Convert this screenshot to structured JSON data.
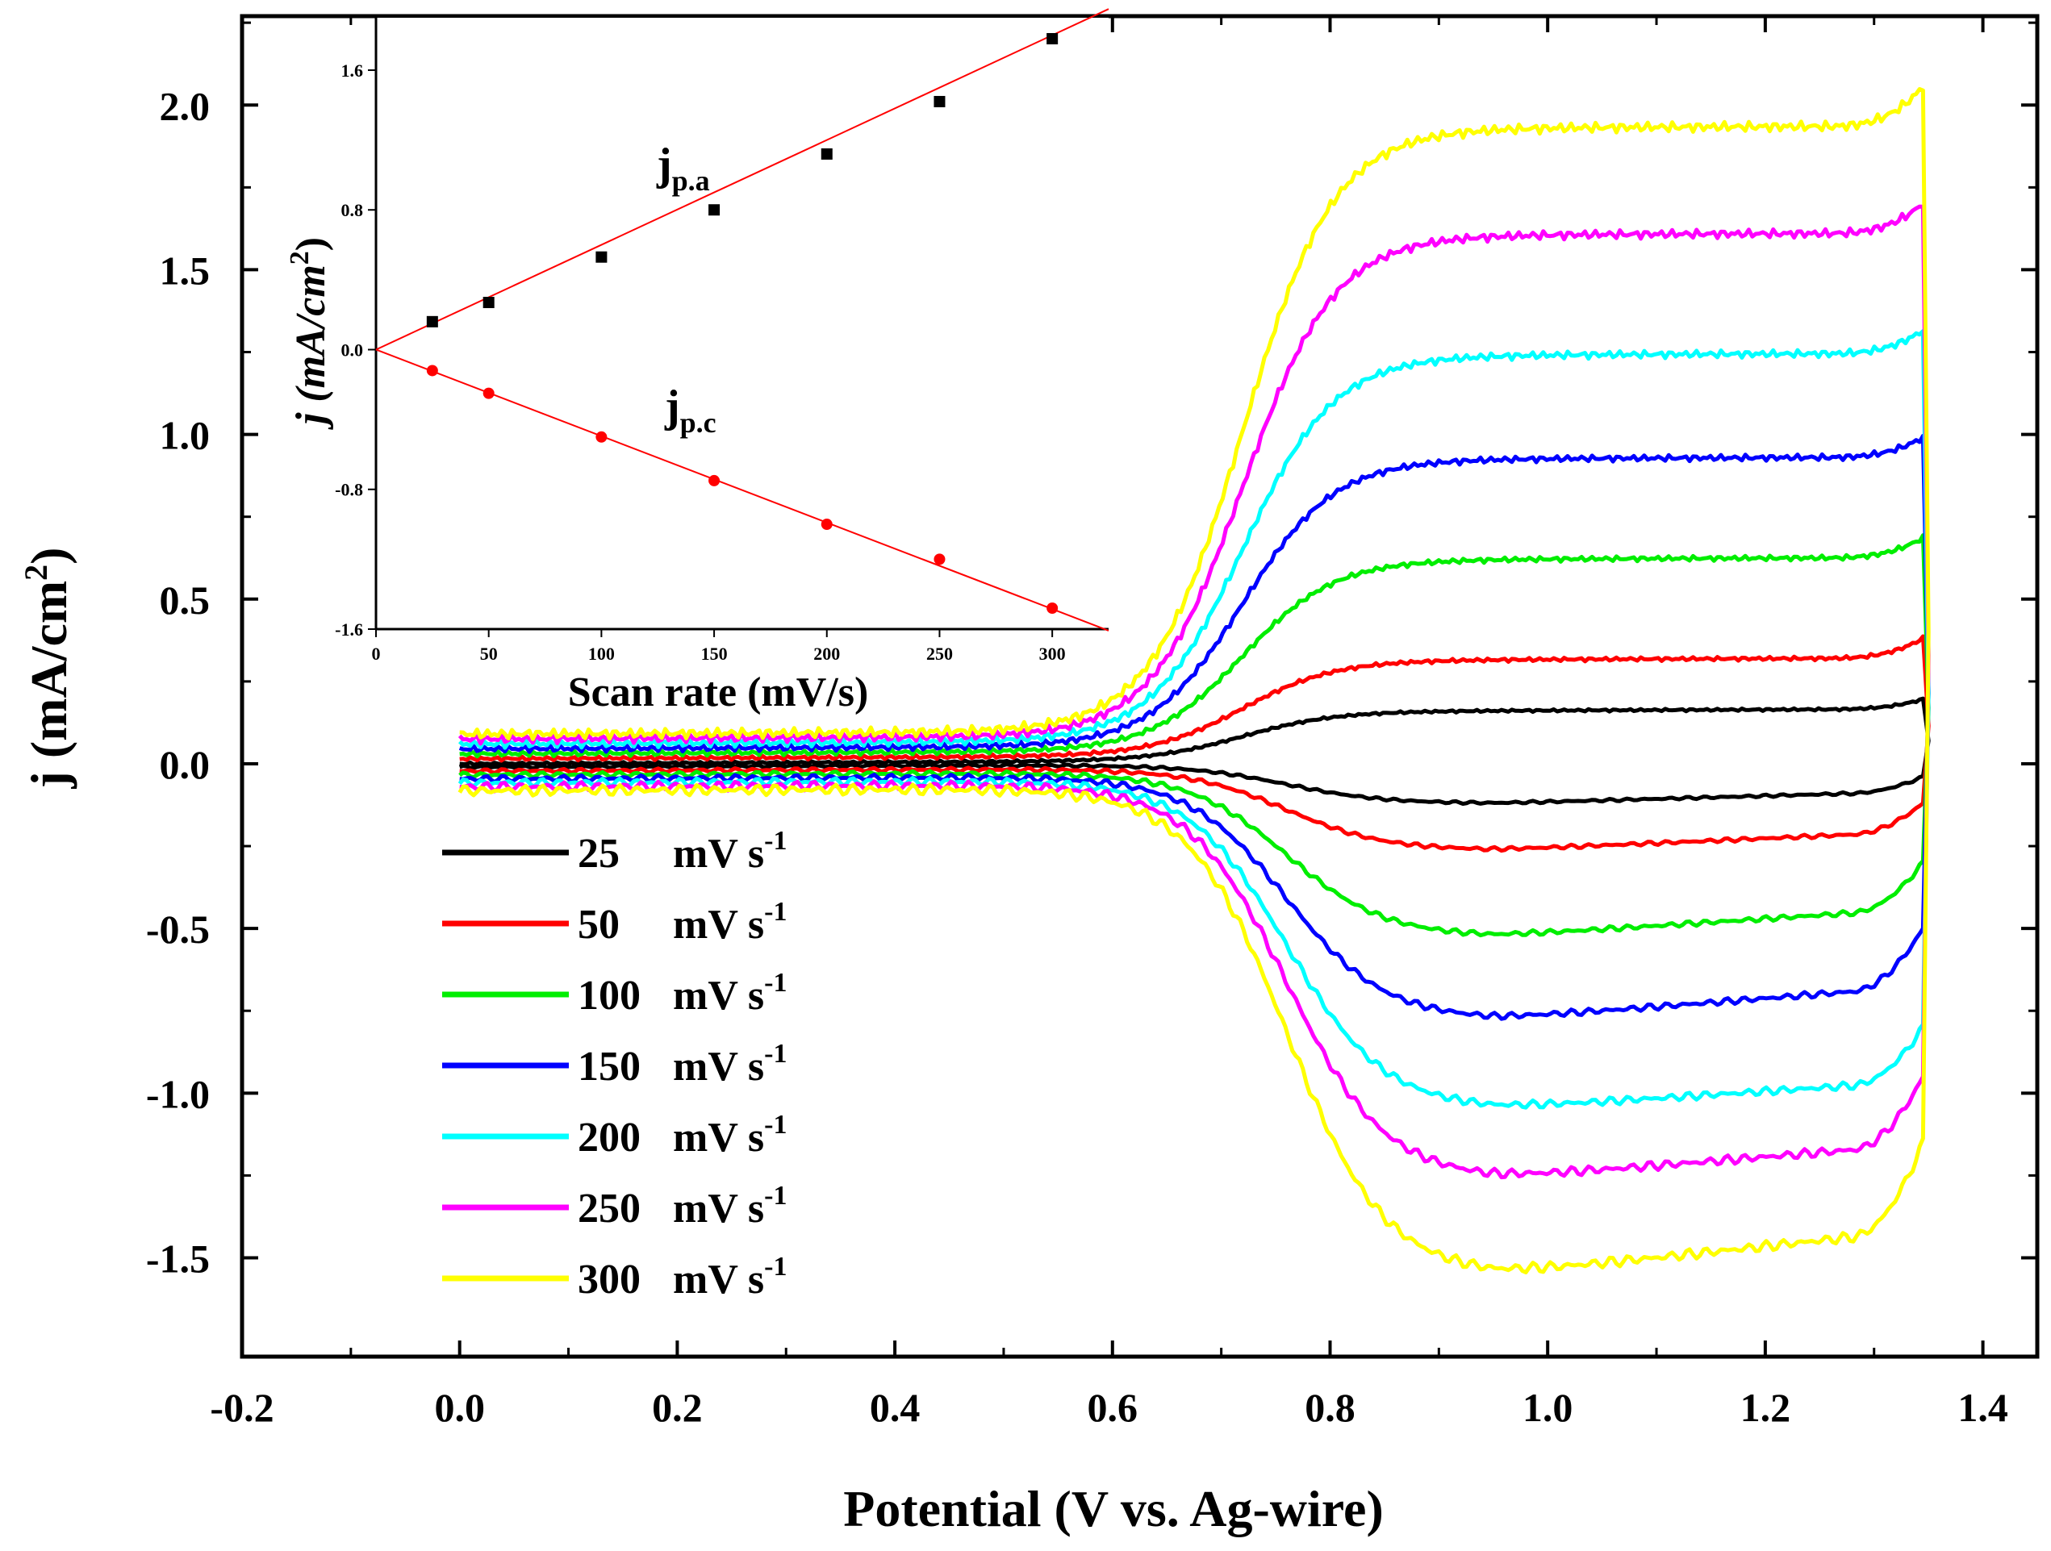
{
  "chart_data": {
    "type": "line",
    "title": "",
    "xlabel": "Potential (V vs. Ag-wire)",
    "ylabel": "j (mA/cm",
    "ylabel_sup": "2",
    "ylabel_close": ")",
    "xlim": [
      -0.2,
      1.45
    ],
    "ylim": [
      -1.8,
      2.27
    ],
    "xticks": [
      {
        "value": -0.2,
        "label": "-0.2"
      },
      {
        "value": 0.0,
        "label": "0.0"
      },
      {
        "value": 0.2,
        "label": "0.2"
      },
      {
        "value": 0.4,
        "label": "0.4"
      },
      {
        "value": 0.6,
        "label": "0.6"
      },
      {
        "value": 0.8,
        "label": "0.8"
      },
      {
        "value": 1.0,
        "label": "1.0"
      },
      {
        "value": 1.2,
        "label": "1.2"
      },
      {
        "value": 1.4,
        "label": "1.4"
      }
    ],
    "yticks": [
      {
        "value": -1.5,
        "label": "-1.5"
      },
      {
        "value": -1.0,
        "label": "-1.0"
      },
      {
        "value": -0.5,
        "label": "-0.5"
      },
      {
        "value": 0.0,
        "label": "0.0"
      },
      {
        "value": 0.5,
        "label": "0.5"
      },
      {
        "value": 1.0,
        "label": "1.0"
      },
      {
        "value": 1.5,
        "label": "1.5"
      },
      {
        "value": 2.0,
        "label": "2.0"
      }
    ],
    "legend_position": "lower-left",
    "legend_unit": "mV s",
    "legend_sup": "-1",
    "series": [
      {
        "name": "25",
        "color": "#000000",
        "anodic_plateau": 0.15,
        "cathodic_peak": -0.12,
        "end_anodic": 0.18,
        "end_cathodic": -0.04
      },
      {
        "name": "50",
        "color": "#ff0000",
        "anodic_plateau": 0.29,
        "cathodic_peak": -0.25,
        "end_anodic": 0.35,
        "end_cathodic": -0.12
      },
      {
        "name": "100",
        "color": "#00ee00",
        "anodic_plateau": 0.58,
        "cathodic_peak": -0.5,
        "end_anodic": 0.64,
        "end_cathodic": -0.3
      },
      {
        "name": "150",
        "color": "#0000ff",
        "anodic_plateau": 0.87,
        "cathodic_peak": -0.74,
        "end_anodic": 0.93,
        "end_cathodic": -0.5
      },
      {
        "name": "200",
        "color": "#00ffff",
        "anodic_plateau": 1.17,
        "cathodic_peak": -1.0,
        "end_anodic": 1.24,
        "end_cathodic": -0.8
      },
      {
        "name": "250",
        "color": "#ff00ff",
        "anodic_plateau": 1.52,
        "cathodic_peak": -1.2,
        "end_anodic": 1.61,
        "end_cathodic": -0.95
      },
      {
        "name": "300",
        "color": "#ffff00",
        "anodic_plateau": 1.83,
        "cathodic_peak": -1.48,
        "end_anodic": 1.95,
        "end_cathodic": -1.15
      }
    ],
    "inset": {
      "type": "scatter",
      "xlabel": "Scan rate (mV/s)",
      "ylabel": "j (mA/cm",
      "ylabel_sup": "2",
      "ylabel_close": ")",
      "xlim": [
        0,
        325
      ],
      "ylim": [
        -1.6,
        1.9
      ],
      "xticks": [
        0,
        50,
        100,
        150,
        200,
        250,
        300
      ],
      "yticks": [
        {
          "value": -1.6,
          "label": "-1.6"
        },
        {
          "value": -0.8,
          "label": "-0.8"
        },
        {
          "value": 0.0,
          "label": "0.0"
        },
        {
          "value": 0.8,
          "label": "0.8"
        },
        {
          "value": 1.6,
          "label": "1.6"
        }
      ],
      "fit_color": "#ff0000",
      "anodic": {
        "label": "j",
        "label_sub": "p.a",
        "marker_color": "#000000",
        "x": [
          25,
          50,
          100,
          150,
          200,
          250,
          300
        ],
        "y": [
          0.16,
          0.27,
          0.53,
          0.8,
          1.12,
          1.42,
          1.78
        ],
        "fit_slope": 0.006,
        "fit_intercept": 0.0
      },
      "cathodic": {
        "label": "j",
        "label_sub": "p.c",
        "marker_color": "#ff0000",
        "x": [
          25,
          50,
          100,
          150,
          200,
          250,
          300
        ],
        "y": [
          -0.12,
          -0.25,
          -0.5,
          -0.75,
          -1.0,
          -1.2,
          -1.48
        ],
        "fit_slope": -0.00495,
        "fit_intercept": 0.0
      }
    }
  }
}
